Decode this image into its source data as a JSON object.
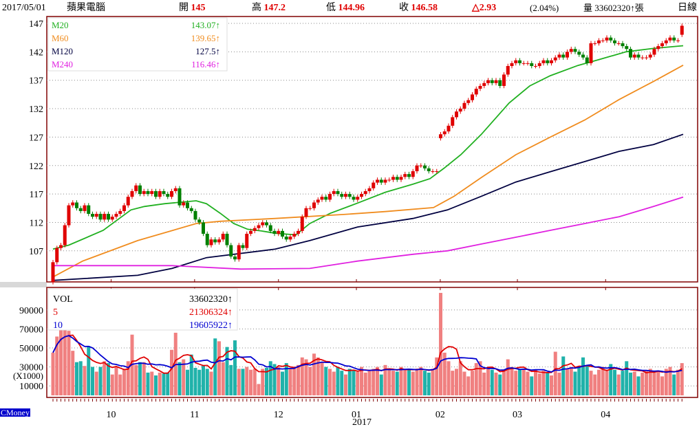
{
  "header": {
    "date": "2017/05/01",
    "name": "蘋果電腦",
    "open_label": "開",
    "open": "145",
    "high_label": "高",
    "high": "147.2",
    "low_label": "低",
    "low": "144.96",
    "close_label": "收",
    "close": "146.58",
    "change": "△2.93",
    "change_pct": "(2.04%)",
    "volume_label": "量",
    "volume": "33602320↑張",
    "period": "日線"
  },
  "brand": "CMoney",
  "colors": {
    "up": "#e00000",
    "down": "#008000",
    "vol_up": "#f08080",
    "vol_down": "#20b2aa",
    "m20": "#20b020",
    "m60": "#f08c1e",
    "m120": "#000040",
    "m240": "#e020e0",
    "frame": "#800000",
    "ma5": "#e00000",
    "ma10": "#0000d0"
  },
  "price_legend": [
    {
      "name": "M20",
      "value": "143.07↑"
    },
    {
      "name": "M60",
      "value": "139.65↑"
    },
    {
      "name": "M120",
      "value": "127.5↑"
    },
    {
      "name": "M240",
      "value": "116.46↑"
    }
  ],
  "volume_legend": [
    {
      "name": "VOL",
      "value": "33602320↑"
    },
    {
      "name": "5",
      "value": "21306324↑"
    },
    {
      "name": "10",
      "value": "19605922↑"
    }
  ],
  "chart_data": {
    "type": "candlestick",
    "price_ticks": [
      "147",
      "142",
      "137",
      "132",
      "127",
      "122",
      "117",
      "112",
      "107"
    ],
    "volume_ticks": [
      "90000",
      "70000",
      "50000",
      "30000",
      "10000"
    ],
    "volume_unit": "(X1000)",
    "months": [
      {
        "label": "10",
        "index": 14.7
      },
      {
        "label": "11",
        "index": 35.8
      },
      {
        "label": "12",
        "index": 57
      },
      {
        "label": "01",
        "index": 76.7
      },
      {
        "label": "02",
        "index": 97.9
      },
      {
        "label": "03",
        "index": 117.4
      },
      {
        "label": "04",
        "index": 139.7
      }
    ],
    "year_label": "2017",
    "open": [
      101.5,
      105,
      107.5,
      108,
      111.5,
      115,
      115.5,
      114.5,
      114,
      115,
      113.5,
      113,
      113.5,
      112.5,
      113.5,
      112.5,
      113,
      113.5,
      114,
      115,
      116.5,
      117.5,
      118.5,
      117,
      117.5,
      117,
      117.5,
      116.5,
      117.5,
      117,
      116.5,
      117.5,
      118,
      115,
      115.5,
      114.5,
      114,
      112.5,
      112,
      110,
      108,
      109,
      108.5,
      109,
      110,
      108,
      106,
      105.5,
      108,
      107.5,
      110,
      110.5,
      111,
      111.5,
      112,
      111.5,
      110.5,
      110,
      110.5,
      109.5,
      109,
      109.5,
      110,
      110.5,
      113,
      114.5,
      114.5,
      115.5,
      116,
      116.5,
      116,
      117,
      117.5,
      117,
      116.5,
      117,
      116.5,
      116,
      116.5,
      117,
      117.5,
      118,
      119,
      119.5,
      119,
      119.5,
      119.5,
      120,
      119.5,
      120,
      120.5,
      120,
      121,
      122,
      122,
      121.5,
      121,
      121,
      126.8,
      127.5,
      128,
      129,
      130.5,
      131.5,
      132,
      133,
      133.5,
      134.5,
      135.5,
      136,
      136.5,
      137,
      136.5,
      137,
      136,
      138,
      139.5,
      140,
      140.5,
      140,
      140,
      140,
      139.5,
      139.5,
      140,
      140.5,
      140,
      140.5,
      141,
      141.5,
      141,
      142,
      142.5,
      142,
      141.5,
      141,
      140,
      143.5,
      143.5,
      144,
      144,
      144.5,
      144,
      143.5,
      143.5,
      143,
      142.5,
      141,
      141.5,
      141,
      141,
      141,
      141.5,
      142.5,
      143,
      143.5,
      144,
      144.5,
      144,
      145
    ],
    "close": [
      105,
      107.5,
      108,
      111.5,
      115,
      115.5,
      114.5,
      114,
      115,
      113.5,
      113,
      113.5,
      112.5,
      113.5,
      112.5,
      113,
      113.5,
      114,
      115,
      116.5,
      117.5,
      118.5,
      117,
      117.5,
      117,
      117.5,
      116.5,
      117.5,
      117,
      116.5,
      117.5,
      118,
      115,
      115.5,
      114.5,
      114,
      112.5,
      112,
      110,
      108,
      109,
      108.5,
      109,
      110,
      108,
      106,
      105.5,
      108,
      107.5,
      110,
      110.5,
      111,
      111.5,
      112,
      111.5,
      110.5,
      110,
      110.5,
      109.5,
      109,
      109.5,
      110,
      110.5,
      113,
      114.5,
      114.5,
      115.5,
      116,
      116.5,
      116,
      117,
      117.5,
      117,
      116.5,
      117,
      116.5,
      116,
      116.5,
      117,
      117.5,
      118,
      119,
      119.5,
      119,
      119.5,
      119.5,
      120,
      119.5,
      120,
      120.5,
      120,
      121,
      122,
      122,
      121.5,
      121,
      121,
      121,
      127.5,
      128,
      129,
      130.5,
      131.5,
      132,
      133,
      133.5,
      134.5,
      135.5,
      136,
      136.5,
      137,
      136.5,
      137,
      136,
      138,
      139.5,
      140,
      140.5,
      140,
      140,
      140,
      139.5,
      139.5,
      140,
      140.5,
      140,
      140.5,
      141,
      141.5,
      141,
      142,
      142.5,
      142,
      141.5,
      141,
      140,
      143.5,
      143.5,
      144,
      144,
      144.5,
      144,
      143.5,
      143.5,
      143,
      142.5,
      141,
      141.5,
      141,
      141,
      141,
      141.5,
      142.5,
      143,
      143.5,
      144,
      144.5,
      144,
      144,
      146.58
    ],
    "volume_k": [
      45,
      62,
      70,
      70,
      68,
      47,
      35,
      36,
      31,
      52,
      30,
      25,
      30,
      36,
      34,
      22,
      30,
      22,
      28,
      36,
      64,
      32,
      35,
      35,
      24,
      25,
      21,
      24,
      23,
      24,
      48,
      66,
      35,
      38,
      27,
      43,
      29,
      27,
      31,
      28,
      25,
      60,
      57,
      35,
      51,
      32,
      58,
      28,
      28,
      30,
      27,
      28,
      12,
      28,
      29,
      36,
      33,
      30,
      25,
      34,
      28,
      30,
      32,
      40,
      38,
      30,
      44,
      40,
      35,
      30,
      28,
      25,
      30,
      26,
      22,
      28,
      27,
      25,
      30,
      24,
      26,
      28,
      30,
      22,
      32,
      28,
      26,
      25,
      30,
      27,
      28,
      25,
      27,
      30,
      26,
      24,
      28,
      40,
      108,
      45,
      36,
      26,
      28,
      36,
      25,
      20,
      26,
      34,
      36,
      24,
      28,
      27,
      24,
      22,
      27,
      38,
      30,
      26,
      27,
      28,
      25,
      20,
      27,
      23,
      26,
      24,
      21,
      46,
      24,
      41,
      28,
      30,
      25,
      30,
      40,
      32,
      26,
      22,
      27,
      30,
      26,
      33,
      27,
      22,
      26,
      36,
      24,
      25,
      20,
      24,
      26,
      28,
      24,
      25,
      20,
      28,
      30,
      22,
      27,
      34
    ],
    "ma_lines": {
      "M20": [
        [
          0,
          107.3
        ],
        [
          4,
          108
        ],
        [
          12.7,
          110.6
        ],
        [
          19.7,
          114.2
        ],
        [
          23.1,
          114.8
        ],
        [
          28.3,
          115.3
        ],
        [
          36.2,
          115.8
        ],
        [
          38.8,
          115.3
        ],
        [
          42.3,
          113.6
        ],
        [
          45.7,
          111.8
        ],
        [
          49.2,
          110.8
        ],
        [
          52.7,
          110.5
        ],
        [
          56.2,
          110.1
        ],
        [
          61.4,
          109.8
        ],
        [
          64.9,
          111.8
        ],
        [
          70.1,
          113.6
        ],
        [
          77,
          115.4
        ],
        [
          84,
          117.3
        ],
        [
          90.9,
          118.7
        ],
        [
          95.3,
          119.7
        ],
        [
          98.8,
          121.5
        ],
        [
          103.1,
          123.9
        ],
        [
          108.3,
          127.5
        ],
        [
          115.3,
          133
        ],
        [
          120.5,
          136
        ],
        [
          125.7,
          137.8
        ],
        [
          132.7,
          139.6
        ],
        [
          137.9,
          140.6
        ],
        [
          144.9,
          142
        ],
        [
          151.8,
          142.6
        ],
        [
          159.3,
          143.07
        ]
      ],
      "M60": [
        [
          0,
          102.4
        ],
        [
          7.5,
          105.2
        ],
        [
          21.4,
          108.8
        ],
        [
          36.2,
          111.8
        ],
        [
          42.3,
          112.2
        ],
        [
          56.2,
          112.7
        ],
        [
          73.5,
          113.4
        ],
        [
          84,
          113.9
        ],
        [
          96.2,
          114.6
        ],
        [
          101.4,
          116.6
        ],
        [
          108.3,
          119.9
        ],
        [
          117,
          123.9
        ],
        [
          125.7,
          127
        ],
        [
          134.4,
          130
        ],
        [
          143.1,
          133.6
        ],
        [
          151.8,
          136.8
        ],
        [
          159.3,
          139.65
        ]
      ],
      "M120": [
        [
          0,
          101.8
        ],
        [
          21.4,
          102.7
        ],
        [
          30.1,
          103.9
        ],
        [
          38.8,
          105.8
        ],
        [
          56.2,
          107.3
        ],
        [
          64.9,
          108.8
        ],
        [
          77,
          111.2
        ],
        [
          91,
          112.7
        ],
        [
          99.7,
          114.2
        ],
        [
          108.3,
          116.6
        ],
        [
          117,
          119.1
        ],
        [
          125.7,
          120.9
        ],
        [
          134.4,
          122.7
        ],
        [
          143.1,
          124.5
        ],
        [
          151.8,
          125.7
        ],
        [
          159.3,
          127.5
        ]
      ],
      "M240": [
        [
          0,
          104.4
        ],
        [
          30.1,
          104.4
        ],
        [
          47.5,
          103.8
        ],
        [
          64.9,
          103.9
        ],
        [
          77,
          105.2
        ],
        [
          91,
          106.4
        ],
        [
          99.7,
          107
        ],
        [
          108.3,
          108.2
        ],
        [
          117,
          109.4
        ],
        [
          125.7,
          110.6
        ],
        [
          134.4,
          111.8
        ],
        [
          143.1,
          113
        ],
        [
          151.8,
          114.8
        ],
        [
          159.3,
          116.46
        ]
      ]
    },
    "volume_ma_periods": [
      5,
      10
    ]
  }
}
